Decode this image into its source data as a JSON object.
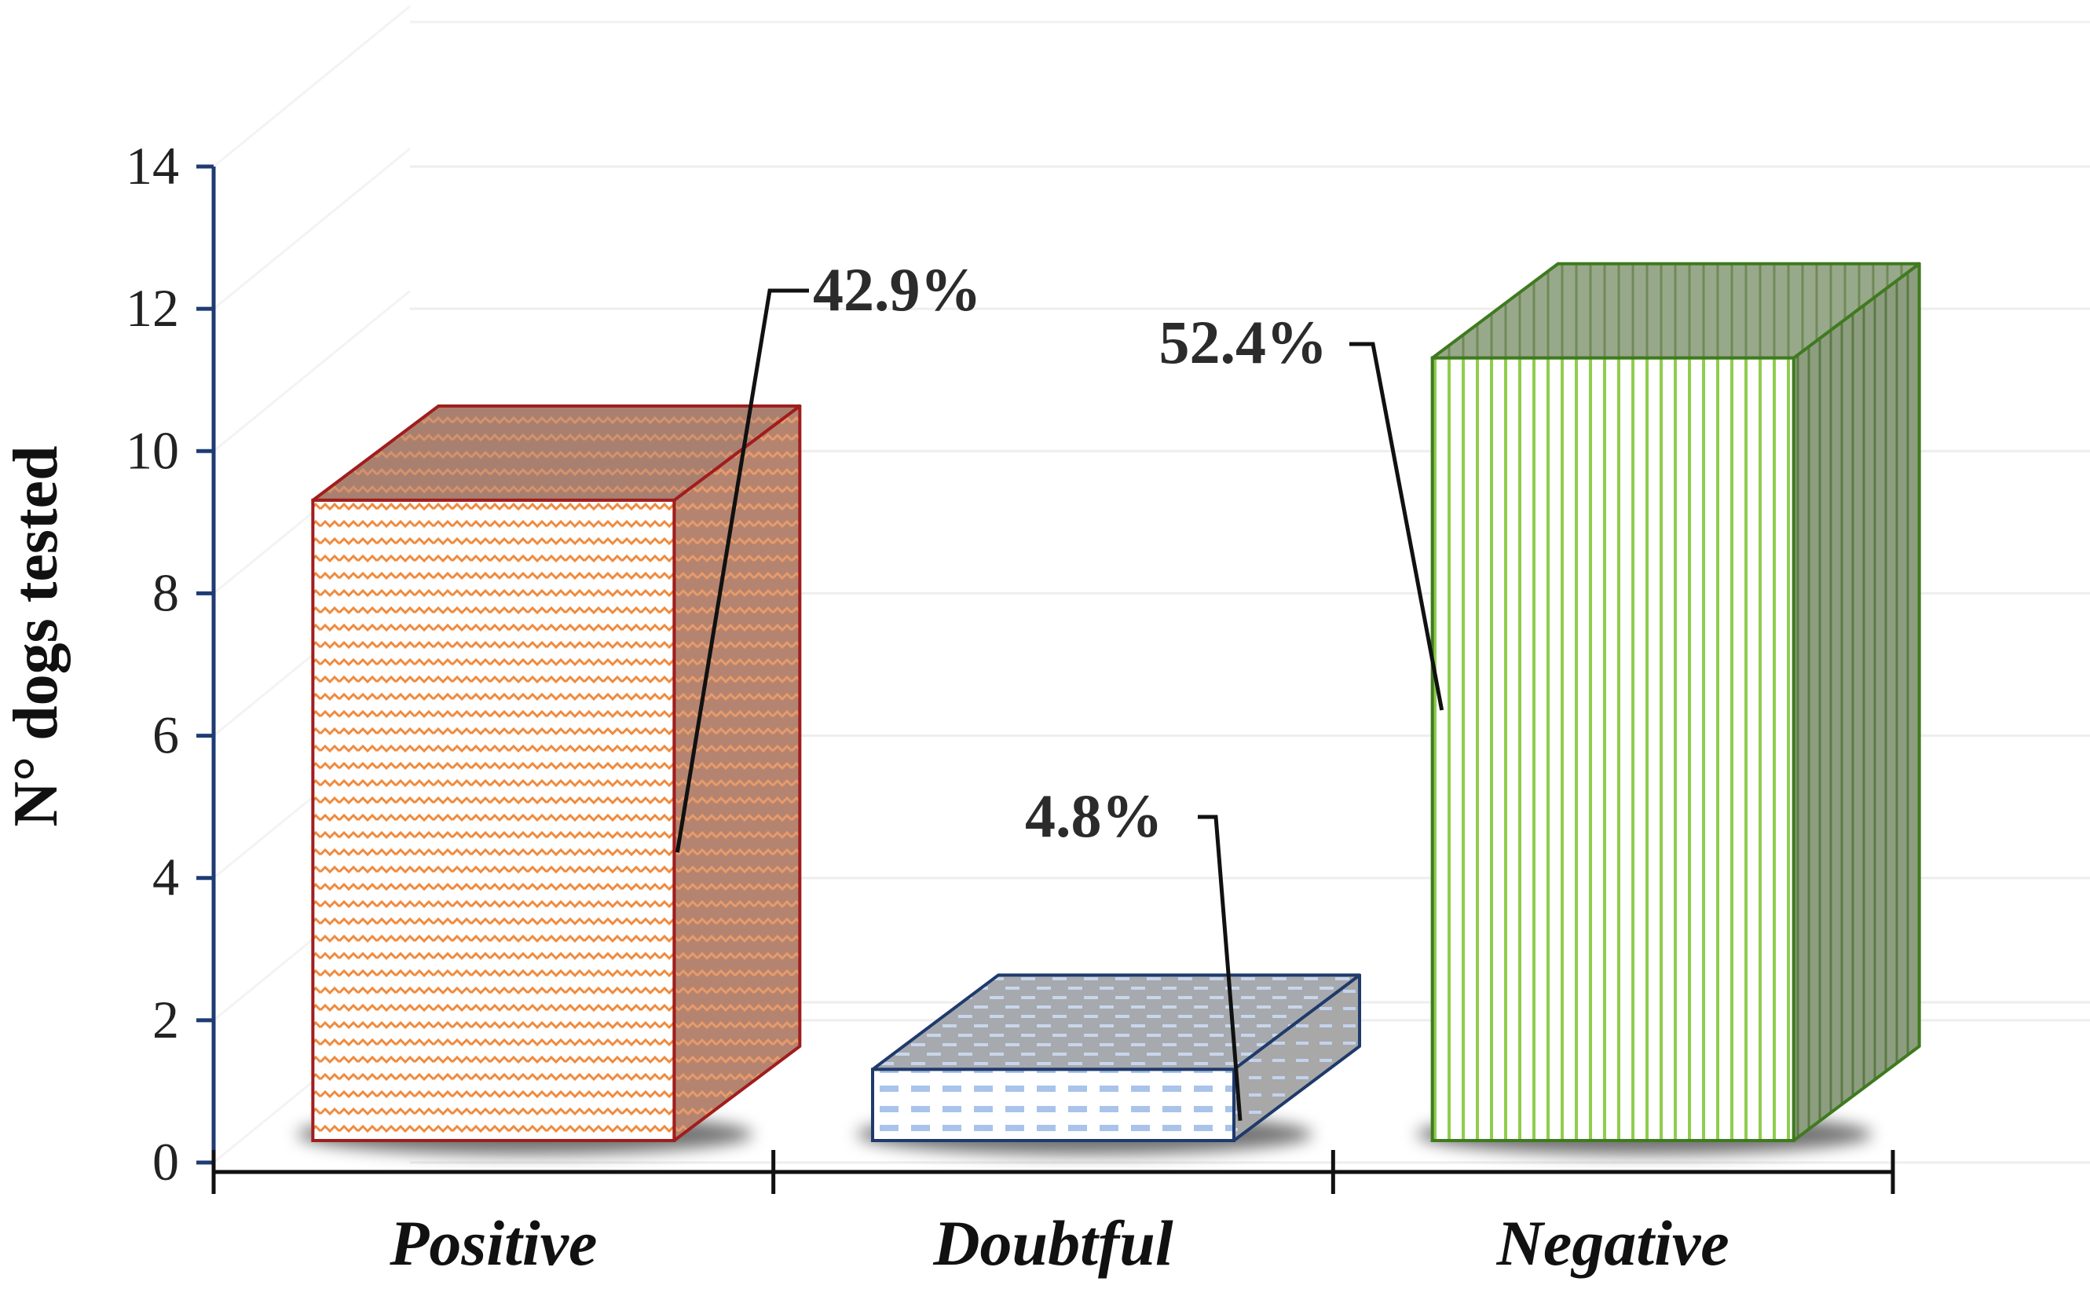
{
  "chart_data": {
    "type": "bar",
    "title": "",
    "xlabel": "",
    "ylabel": "N° dogs  tested",
    "categories": [
      "Positive",
      "Doubtful",
      "Negative"
    ],
    "values": [
      9,
      1,
      11
    ],
    "data_labels": [
      "42.9%",
      "4.8%",
      "52.4%"
    ],
    "ylim": [
      0,
      14
    ],
    "yticks": [
      0,
      2,
      4,
      6,
      8,
      10,
      12,
      14
    ],
    "grid": true,
    "legend": "none",
    "style": "3d-column"
  },
  "colors": {
    "axis": "#1f3b73",
    "grid": "#eeeeee",
    "positive_edge": "#a01d1d",
    "positive_fill": "#f08a3c",
    "doubtful_edge": "#1f3a6b",
    "doubtful_fill": "#a9c3ea",
    "negative_edge": "#3f7a1f",
    "negative_fill": "#8fcd4d"
  }
}
